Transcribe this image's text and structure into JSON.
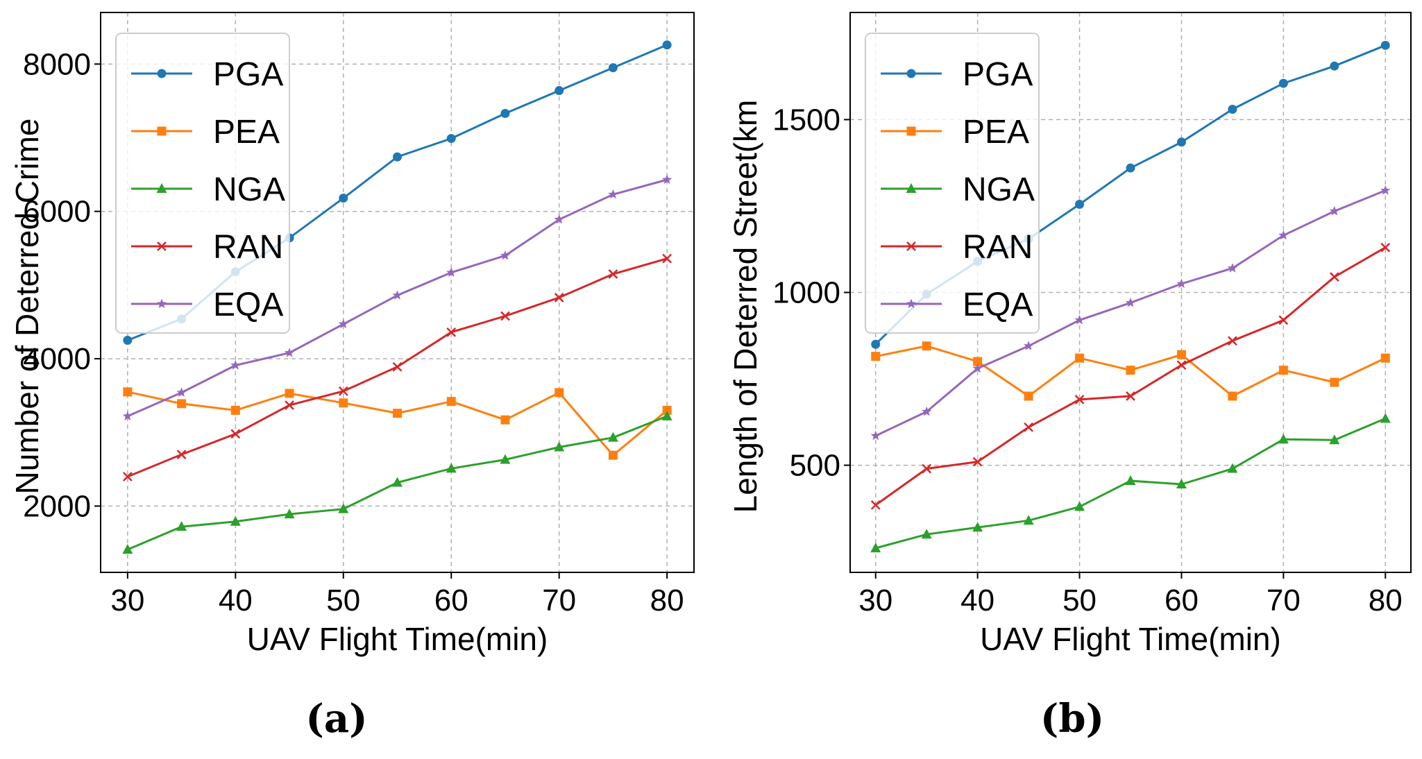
{
  "chart_data": [
    {
      "type": "line",
      "panel_label": "(a)",
      "xlabel": "UAV Flight Time(min)",
      "ylabel": "Number of Deterred Crime",
      "x": [
        30,
        35,
        40,
        45,
        50,
        55,
        60,
        65,
        70,
        75,
        80
      ],
      "xticks": [
        30,
        40,
        50,
        60,
        70,
        80
      ],
      "xlim": [
        27.5,
        82.5
      ],
      "yticks": [
        2000,
        4000,
        6000,
        8000
      ],
      "ylim": [
        1100,
        8700
      ],
      "grid": true,
      "legend_position": "top-left",
      "series": [
        {
          "name": "PGA",
          "color": "#1f77b4",
          "marker": "circle",
          "values": [
            4250,
            4540,
            5180,
            5640,
            6180,
            6740,
            6990,
            7330,
            7640,
            7950,
            8260
          ]
        },
        {
          "name": "PEA",
          "color": "#ff7f0e",
          "marker": "square",
          "values": [
            3550,
            3390,
            3300,
            3530,
            3400,
            3260,
            3420,
            3170,
            3540,
            2690,
            3300
          ]
        },
        {
          "name": "NGA",
          "color": "#2ca02c",
          "marker": "triangle",
          "values": [
            1410,
            1720,
            1790,
            1890,
            1960,
            2320,
            2510,
            2630,
            2800,
            2930,
            3220
          ]
        },
        {
          "name": "RAN",
          "color": "#d62728",
          "marker": "x",
          "values": [
            2400,
            2700,
            2980,
            3370,
            3560,
            3890,
            4360,
            4580,
            4830,
            5150,
            5360
          ]
        },
        {
          "name": "EQA",
          "color": "#9467bd",
          "marker": "star",
          "values": [
            3220,
            3540,
            3910,
            4080,
            4470,
            4860,
            5170,
            5400,
            5890,
            6230,
            6430
          ]
        }
      ]
    },
    {
      "type": "line",
      "panel_label": "(b)",
      "xlabel": "UAV Flight Time(min)",
      "ylabel": "Length of Deterred Street(km",
      "x": [
        30,
        35,
        40,
        45,
        50,
        55,
        60,
        65,
        70,
        75,
        80
      ],
      "xticks": [
        30,
        40,
        50,
        60,
        70,
        80
      ],
      "xlim": [
        27.5,
        82.5
      ],
      "yticks": [
        500,
        1000,
        1500
      ],
      "ylim": [
        190,
        1810
      ],
      "grid": true,
      "legend_position": "top-left",
      "series": [
        {
          "name": "PGA",
          "color": "#1f77b4",
          "marker": "circle",
          "values": [
            850,
            995,
            1090,
            1155,
            1255,
            1360,
            1435,
            1530,
            1605,
            1655,
            1715
          ]
        },
        {
          "name": "PEA",
          "color": "#ff7f0e",
          "marker": "square",
          "values": [
            815,
            845,
            800,
            700,
            810,
            775,
            820,
            700,
            775,
            740,
            810
          ]
        },
        {
          "name": "NGA",
          "color": "#2ca02c",
          "marker": "triangle",
          "values": [
            260,
            300,
            320,
            340,
            380,
            455,
            445,
            490,
            575,
            573,
            635
          ]
        },
        {
          "name": "RAN",
          "color": "#d62728",
          "marker": "x",
          "values": [
            385,
            490,
            510,
            610,
            690,
            700,
            790,
            860,
            920,
            1045,
            1130
          ]
        },
        {
          "name": "EQA",
          "color": "#9467bd",
          "marker": "star",
          "values": [
            585,
            655,
            780,
            845,
            920,
            970,
            1025,
            1070,
            1165,
            1235,
            1295
          ]
        }
      ]
    }
  ]
}
